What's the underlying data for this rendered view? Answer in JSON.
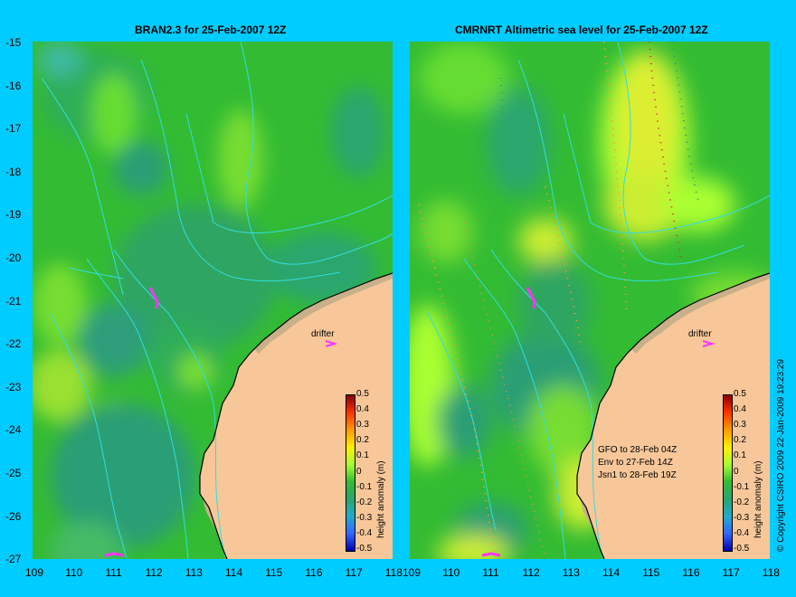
{
  "left_panel": {
    "title": "BRAN2.3 for 25-Feb-2007 12Z",
    "drifter_label": "drifter",
    "colorbar_label": "height anomaly (m)"
  },
  "right_panel": {
    "title": "CMRNRT Altimetric sea level  for 25-Feb-2007 12Z",
    "drifter_label": "drifter",
    "colorbar_label": "height anomaly (m)",
    "passes": [
      "GFO to 28-Feb 04Z",
      "Env to 27-Feb 14Z",
      "Jsn1 to 28-Feb 19Z"
    ]
  },
  "y_ticks": [
    "-15",
    "-16",
    "-17",
    "-18",
    "-19",
    "-20",
    "-21",
    "-22",
    "-23",
    "-24",
    "-25",
    "-26",
    "-27"
  ],
  "x_ticks": [
    "109",
    "110",
    "111",
    "112",
    "113",
    "114",
    "115",
    "116",
    "117",
    "118"
  ],
  "colorbar_ticks": [
    "0.5",
    "0.4",
    "0.3",
    "0.2",
    "0.1",
    "0",
    "-0.1",
    "-0.2",
    "-0.3",
    "-0.4",
    "-0.5"
  ],
  "copyright": "© Copyright CSIRO 2009   22-Jan-2009 19:23:29",
  "colors": {
    "background": "#00ccff",
    "land": "#f7c79a",
    "shallow": "#c9b08a",
    "ocean_base": "#33bb33",
    "contour": "#33dddd",
    "drifter": "#ff33ff"
  }
}
